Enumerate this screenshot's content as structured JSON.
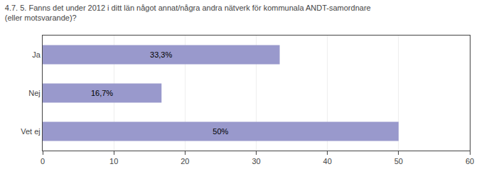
{
  "chart_data": {
    "type": "bar",
    "orientation": "horizontal",
    "title": "4.7. 5. Fanns det under 2012 i ditt län något annat/några andra nätverk för kommunala ANDT-samordnare\n(eller motsvarande)?",
    "categories": [
      "Ja",
      "Nej",
      "Vet ej"
    ],
    "values": [
      33.3,
      16.7,
      50.0
    ],
    "value_labels": [
      "33,3%",
      "16,7%",
      "50%"
    ],
    "data_labels": true,
    "color": "#9999cc",
    "xlim": [
      0,
      60
    ],
    "xticks": [
      0,
      10,
      20,
      30,
      40,
      50,
      60
    ],
    "grid": true
  }
}
